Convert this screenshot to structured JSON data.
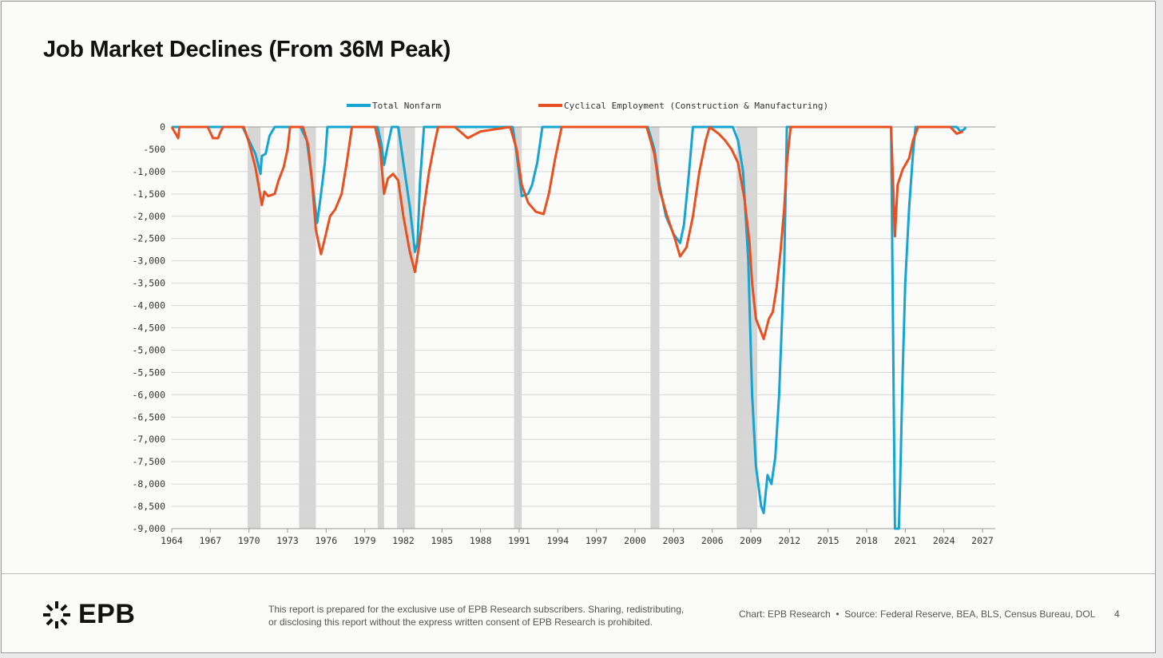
{
  "title": "Job Market Declines (From 36M Peak)",
  "footer": {
    "logo_text": "EPB",
    "disclaimer_line1": "This report is prepared for the exclusive use of EPB Research subscribers. Sharing, redistributing,",
    "disclaimer_line2": "or disclosing this report without the express written consent of EPB Research is prohibited.",
    "chart_credit": "Chart: EPB Research",
    "separator": "•",
    "source": "Source: Federal Reserve, BEA, BLS, Census Bureau, DOL",
    "page_number": "4"
  },
  "chart_data": {
    "type": "line",
    "title": "Job Market Declines (From 36M Peak)",
    "xlabel": "",
    "ylabel": "",
    "xlim": [
      1964,
      2027
    ],
    "ylim": [
      -9000,
      0
    ],
    "x_ticks": [
      "1964",
      "1967",
      "1970",
      "1973",
      "1976",
      "1979",
      "1982",
      "1985",
      "1988",
      "1991",
      "1994",
      "1997",
      "2000",
      "2003",
      "2006",
      "2009",
      "2012",
      "2015",
      "2018",
      "2021",
      "2024",
      "2027"
    ],
    "y_ticks": [
      "0",
      "-500",
      "-1,000",
      "-1,500",
      "-2,000",
      "-2,500",
      "-3,000",
      "-3,500",
      "-4,000",
      "-4,500",
      "-5,000",
      "-5,500",
      "-6,000",
      "-6,500",
      "-7,000",
      "-7,500",
      "-8,000",
      "-8,500",
      "-9,000"
    ],
    "grid": true,
    "legend_position": "top",
    "recessions": [
      [
        1969.9,
        1970.9
      ],
      [
        1973.9,
        1975.2
      ],
      [
        1980.0,
        1980.5
      ],
      [
        1981.5,
        1982.9
      ],
      [
        1990.6,
        1991.2
      ],
      [
        2001.2,
        2001.9
      ],
      [
        2007.9,
        2009.5
      ]
    ],
    "series": [
      {
        "name": "Total Nonfarm",
        "color": "#14a5d2",
        "points": [
          [
            1964,
            0
          ],
          [
            1969.5,
            0
          ],
          [
            1970.0,
            -300
          ],
          [
            1970.5,
            -600
          ],
          [
            1970.9,
            -1050
          ],
          [
            1971.0,
            -650
          ],
          [
            1971.3,
            -600
          ],
          [
            1971.6,
            -200
          ],
          [
            1972,
            0
          ],
          [
            1974.0,
            0
          ],
          [
            1974.5,
            -300
          ],
          [
            1974.9,
            -1200
          ],
          [
            1975.3,
            -2150
          ],
          [
            1975.6,
            -1500
          ],
          [
            1975.9,
            -800
          ],
          [
            1976.1,
            0
          ],
          [
            1980,
            0
          ],
          [
            1980.3,
            -400
          ],
          [
            1980.5,
            -850
          ],
          [
            1980.8,
            -400
          ],
          [
            1981.1,
            0
          ],
          [
            1981.6,
            0
          ],
          [
            1982.0,
            -800
          ],
          [
            1982.5,
            -1800
          ],
          [
            1982.9,
            -2800
          ],
          [
            1983.1,
            -2600
          ],
          [
            1983.3,
            -1200
          ],
          [
            1983.6,
            0
          ],
          [
            1990.5,
            0
          ],
          [
            1990.8,
            -600
          ],
          [
            1991.2,
            -1550
          ],
          [
            1991.7,
            -1500
          ],
          [
            1992.0,
            -1300
          ],
          [
            1992.4,
            -800
          ],
          [
            1992.8,
            0
          ],
          [
            2001.0,
            0
          ],
          [
            2001.5,
            -500
          ],
          [
            2001.9,
            -1300
          ],
          [
            2002.4,
            -2000
          ],
          [
            2003.0,
            -2400
          ],
          [
            2003.5,
            -2600
          ],
          [
            2003.8,
            -2200
          ],
          [
            2004.2,
            -1000
          ],
          [
            2004.5,
            0
          ],
          [
            2007.6,
            0
          ],
          [
            2008.0,
            -300
          ],
          [
            2008.4,
            -1000
          ],
          [
            2008.8,
            -3000
          ],
          [
            2009.1,
            -6000
          ],
          [
            2009.4,
            -7600
          ],
          [
            2009.8,
            -8500
          ],
          [
            2010.0,
            -8650
          ],
          [
            2010.3,
            -7800
          ],
          [
            2010.6,
            -8000
          ],
          [
            2010.9,
            -7400
          ],
          [
            2011.2,
            -6000
          ],
          [
            2011.6,
            -3000
          ],
          [
            2011.8,
            0
          ],
          [
            2019.9,
            0
          ],
          [
            2020.2,
            -9000
          ],
          [
            2020.5,
            -9000
          ],
          [
            2020.6,
            -8000
          ],
          [
            2020.8,
            -5500
          ],
          [
            2021.0,
            -3500
          ],
          [
            2021.3,
            -1800
          ],
          [
            2021.6,
            -600
          ],
          [
            2021.8,
            0
          ],
          [
            2025.0,
            0
          ],
          [
            2025.3,
            -100
          ],
          [
            2025.6,
            -50
          ],
          [
            2025.7,
            0
          ]
        ]
      },
      {
        "name": "Cyclical Employment (Construction & Manufacturing)",
        "color": "#e8511f",
        "points": [
          [
            1964,
            0
          ],
          [
            1964.5,
            -250
          ],
          [
            1964.6,
            0
          ],
          [
            1966.8,
            0
          ],
          [
            1967.2,
            -250
          ],
          [
            1967.6,
            -250
          ],
          [
            1967.8,
            -100
          ],
          [
            1968,
            0
          ],
          [
            1969.6,
            0
          ],
          [
            1970.0,
            -350
          ],
          [
            1970.5,
            -900
          ],
          [
            1970.8,
            -1400
          ],
          [
            1971.0,
            -1750
          ],
          [
            1971.2,
            -1450
          ],
          [
            1971.5,
            -1550
          ],
          [
            1972.0,
            -1500
          ],
          [
            1972.3,
            -1200
          ],
          [
            1972.7,
            -900
          ],
          [
            1973.0,
            -500
          ],
          [
            1973.2,
            0
          ],
          [
            1974.2,
            0
          ],
          [
            1974.6,
            -400
          ],
          [
            1974.9,
            -1200
          ],
          [
            1975.2,
            -2300
          ],
          [
            1975.6,
            -2850
          ],
          [
            1975.9,
            -2500
          ],
          [
            1976.3,
            -2000
          ],
          [
            1976.7,
            -1850
          ],
          [
            1977.2,
            -1500
          ],
          [
            1977.6,
            -800
          ],
          [
            1978,
            0
          ],
          [
            1979.8,
            0
          ],
          [
            1980.2,
            -500
          ],
          [
            1980.5,
            -1500
          ],
          [
            1980.8,
            -1150
          ],
          [
            1981.2,
            -1050
          ],
          [
            1981.6,
            -1200
          ],
          [
            1982.0,
            -2000
          ],
          [
            1982.5,
            -2800
          ],
          [
            1982.9,
            -3250
          ],
          [
            1983.2,
            -2700
          ],
          [
            1983.6,
            -1800
          ],
          [
            1984.0,
            -1000
          ],
          [
            1984.4,
            -400
          ],
          [
            1984.7,
            0
          ],
          [
            1986,
            0
          ],
          [
            1987,
            -250
          ],
          [
            1988,
            -100
          ],
          [
            1990.3,
            0
          ],
          [
            1990.8,
            -500
          ],
          [
            1991.2,
            -1300
          ],
          [
            1991.7,
            -1700
          ],
          [
            1992.3,
            -1900
          ],
          [
            1992.9,
            -1950
          ],
          [
            1993.3,
            -1500
          ],
          [
            1993.8,
            -700
          ],
          [
            1994.3,
            0
          ],
          [
            2000.9,
            0
          ],
          [
            2001.5,
            -600
          ],
          [
            2001.9,
            -1400
          ],
          [
            2002.5,
            -2000
          ],
          [
            2003.1,
            -2500
          ],
          [
            2003.5,
            -2900
          ],
          [
            2004.0,
            -2700
          ],
          [
            2004.5,
            -2000
          ],
          [
            2005.0,
            -1000
          ],
          [
            2005.5,
            -300
          ],
          [
            2005.8,
            0
          ],
          [
            2006.5,
            -150
          ],
          [
            2007.0,
            -300
          ],
          [
            2007.5,
            -500
          ],
          [
            2008.0,
            -800
          ],
          [
            2008.5,
            -1600
          ],
          [
            2008.9,
            -2600
          ],
          [
            2009.1,
            -3500
          ],
          [
            2009.4,
            -4300
          ],
          [
            2009.8,
            -4600
          ],
          [
            2010.0,
            -4750
          ],
          [
            2010.4,
            -4300
          ],
          [
            2010.7,
            -4150
          ],
          [
            2011.0,
            -3600
          ],
          [
            2011.3,
            -2800
          ],
          [
            2011.6,
            -1800
          ],
          [
            2011.8,
            -800
          ],
          [
            2012.1,
            0
          ],
          [
            2019.9,
            0
          ],
          [
            2020.2,
            -2450
          ],
          [
            2020.4,
            -1300
          ],
          [
            2020.8,
            -950
          ],
          [
            2021.3,
            -700
          ],
          [
            2021.6,
            -300
          ],
          [
            2022.0,
            0
          ],
          [
            2024.5,
            0
          ],
          [
            2025.0,
            -150
          ],
          [
            2025.5,
            -100
          ]
        ]
      }
    ]
  }
}
